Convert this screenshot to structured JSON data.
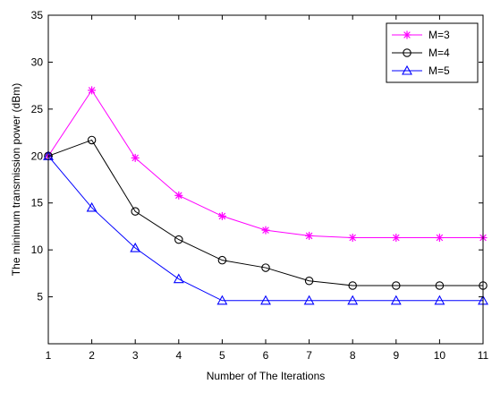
{
  "chart_data": {
    "type": "line",
    "title": "",
    "xlabel": "Number of The Iterations",
    "ylabel": "The minimum transmission power (dBm)",
    "xlim": [
      1,
      11
    ],
    "ylim": [
      0,
      35
    ],
    "x": [
      1,
      2,
      3,
      4,
      5,
      6,
      7,
      8,
      9,
      10,
      11
    ],
    "xticks": [
      "1",
      "2",
      "3",
      "4",
      "5",
      "6",
      "7",
      "8",
      "9",
      "10",
      "11"
    ],
    "yticks": [
      "5",
      "10",
      "15",
      "20",
      "25",
      "30",
      "35"
    ],
    "grid": false,
    "legend_position": "top-right",
    "series": [
      {
        "name": "M=3",
        "color": "#ff00ff",
        "marker": "star",
        "values": [
          20,
          27,
          19.8,
          15.8,
          13.6,
          12.1,
          11.5,
          11.3,
          11.3,
          11.3,
          11.3
        ]
      },
      {
        "name": "M=4",
        "color": "#000000",
        "marker": "circle",
        "values": [
          20,
          21.7,
          14.1,
          11.1,
          8.9,
          8.1,
          6.7,
          6.2,
          6.2,
          6.2,
          6.2
        ]
      },
      {
        "name": "M=5",
        "color": "#0000ff",
        "marker": "triangle",
        "values": [
          20,
          14.5,
          10.2,
          6.9,
          4.6,
          4.6,
          4.6,
          4.6,
          4.6,
          4.6,
          4.6
        ]
      }
    ]
  }
}
